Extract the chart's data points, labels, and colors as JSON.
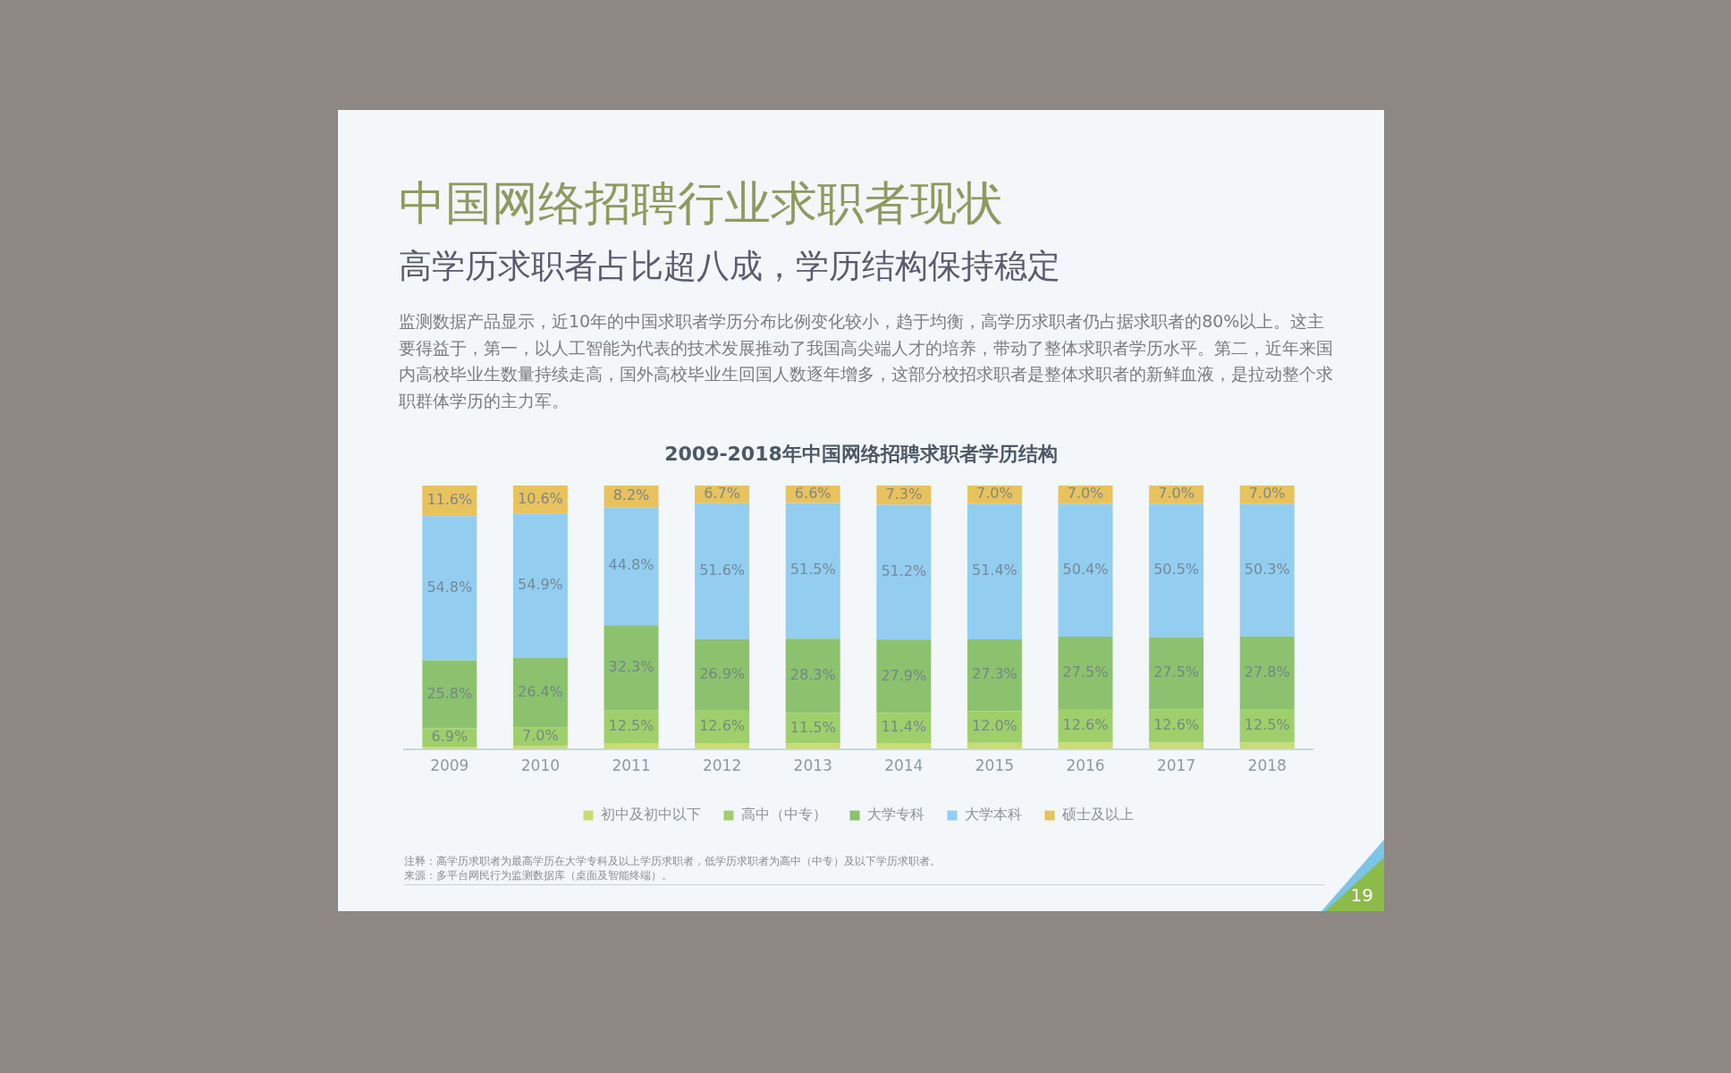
{
  "chart_data": {
    "type": "bar",
    "title": "中国网络招聘行业求职者现状",
    "subtitle": "高学历求职者占比超八成，学历结构保持稳定",
    "annotations": [
      "监测数据产品显示，近10年的中国求职者学历分布比例变化较小，趋于均衡，高学历求职者仍占据求职者的80%以上。这主要得益于，第一，以人工智能为代表的技术发展推动了我国高尖端人才的培养，带动了整体求职者学历水平。第二，近年来国内高校毕业生数量持续走高，国外高校毕业生回国人数逐年增多，这部分校招求职者是整体求职者的新鲜血液，是拉动整个求职群体学历的主力军。",
      "2009-2018年中国网络招聘求职者学历结构",
      "注释：高学历求职者为最高学历在大学专科及以上学历求职者，低学历求职者为高中（中专）及以下学历求职者。",
      "来源：多平台网民行为监测数据库（桌面及智能终端）。",
      "19"
    ],
    "categories": [
      "2009",
      "2010",
      "2011",
      "2012",
      "2013",
      "2014",
      "2015",
      "2016",
      "2017",
      "2018"
    ],
    "stacked": true,
    "legend": "bottom",
    "grid": false,
    "series": [
      {
        "name": "初中及初中以下",
        "color": "#c9dc72",
        "values": [
          0.9,
          1.1,
          2.2,
          2.2,
          2.1,
          2.2,
          2.3,
          2.5,
          2.4,
          2.4
        ]
      },
      {
        "name": "高中（中专）",
        "color": "#9fcf6a",
        "values": [
          6.9,
          7.0,
          12.5,
          12.6,
          11.5,
          11.4,
          12.0,
          12.6,
          12.6,
          12.5
        ],
        "value_labels": [
          "6.9%",
          "7.0%",
          "12.5%",
          "12.6%",
          "11.5%",
          "11.4%",
          "12.0%",
          "12.6%",
          "12.6%",
          "12.5%"
        ]
      },
      {
        "name": "大学专科",
        "color": "#8cc26e",
        "values": [
          25.8,
          26.4,
          32.3,
          26.9,
          28.3,
          27.9,
          27.3,
          27.5,
          27.5,
          27.8
        ],
        "value_labels": [
          "25.8%",
          "26.4%",
          "32.3%",
          "26.9%",
          "28.3%",
          "27.9%",
          "27.3%",
          "27.5%",
          "27.5%",
          "27.8%"
        ]
      },
      {
        "name": "大学本科",
        "color": "#93cdf0",
        "values": [
          54.8,
          54.9,
          44.8,
          51.6,
          51.5,
          51.2,
          51.4,
          50.4,
          50.5,
          50.3
        ],
        "value_labels": [
          "54.8%",
          "54.9%",
          "44.8%",
          "51.6%",
          "51.5%",
          "51.2%",
          "51.4%",
          "50.4%",
          "50.5%",
          "50.3%"
        ]
      },
      {
        "name": "硕士及以上",
        "color": "#e8c25c",
        "values": [
          11.6,
          10.6,
          8.2,
          6.7,
          6.6,
          7.3,
          7.0,
          7.0,
          7.0,
          7.0
        ],
        "value_labels": [
          "11.6%",
          "10.6%",
          "8.2%",
          "6.7%",
          "6.6%",
          "7.3%",
          "7.0%",
          "7.0%",
          "7.0%",
          "7.0%"
        ]
      }
    ]
  }
}
